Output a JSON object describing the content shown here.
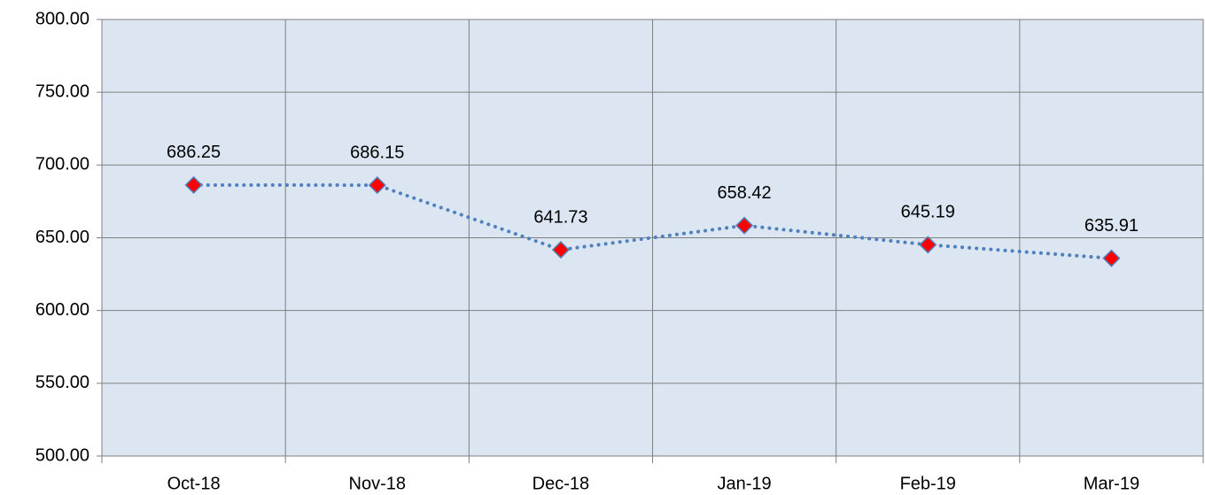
{
  "chart_data": {
    "type": "line",
    "categories": [
      "Oct-18",
      "Nov-18",
      "Dec-18",
      "Jan-19",
      "Feb-19",
      "Mar-19"
    ],
    "values": [
      686.25,
      686.15,
      641.73,
      658.42,
      645.19,
      635.91
    ],
    "color": "#4f81bd",
    "marker_color": "#ff0000",
    "ylim": [
      500,
      800
    ],
    "yticks": [
      {
        "value": 500,
        "label": "500.00"
      },
      {
        "value": 550,
        "label": "550.00"
      },
      {
        "value": 600,
        "label": "600.00"
      },
      {
        "value": 650,
        "label": "650.00"
      },
      {
        "value": 700,
        "label": "700.00"
      },
      {
        "value": 750,
        "label": "750.00"
      },
      {
        "value": 800,
        "label": "800.00"
      }
    ],
    "grid": true
  }
}
